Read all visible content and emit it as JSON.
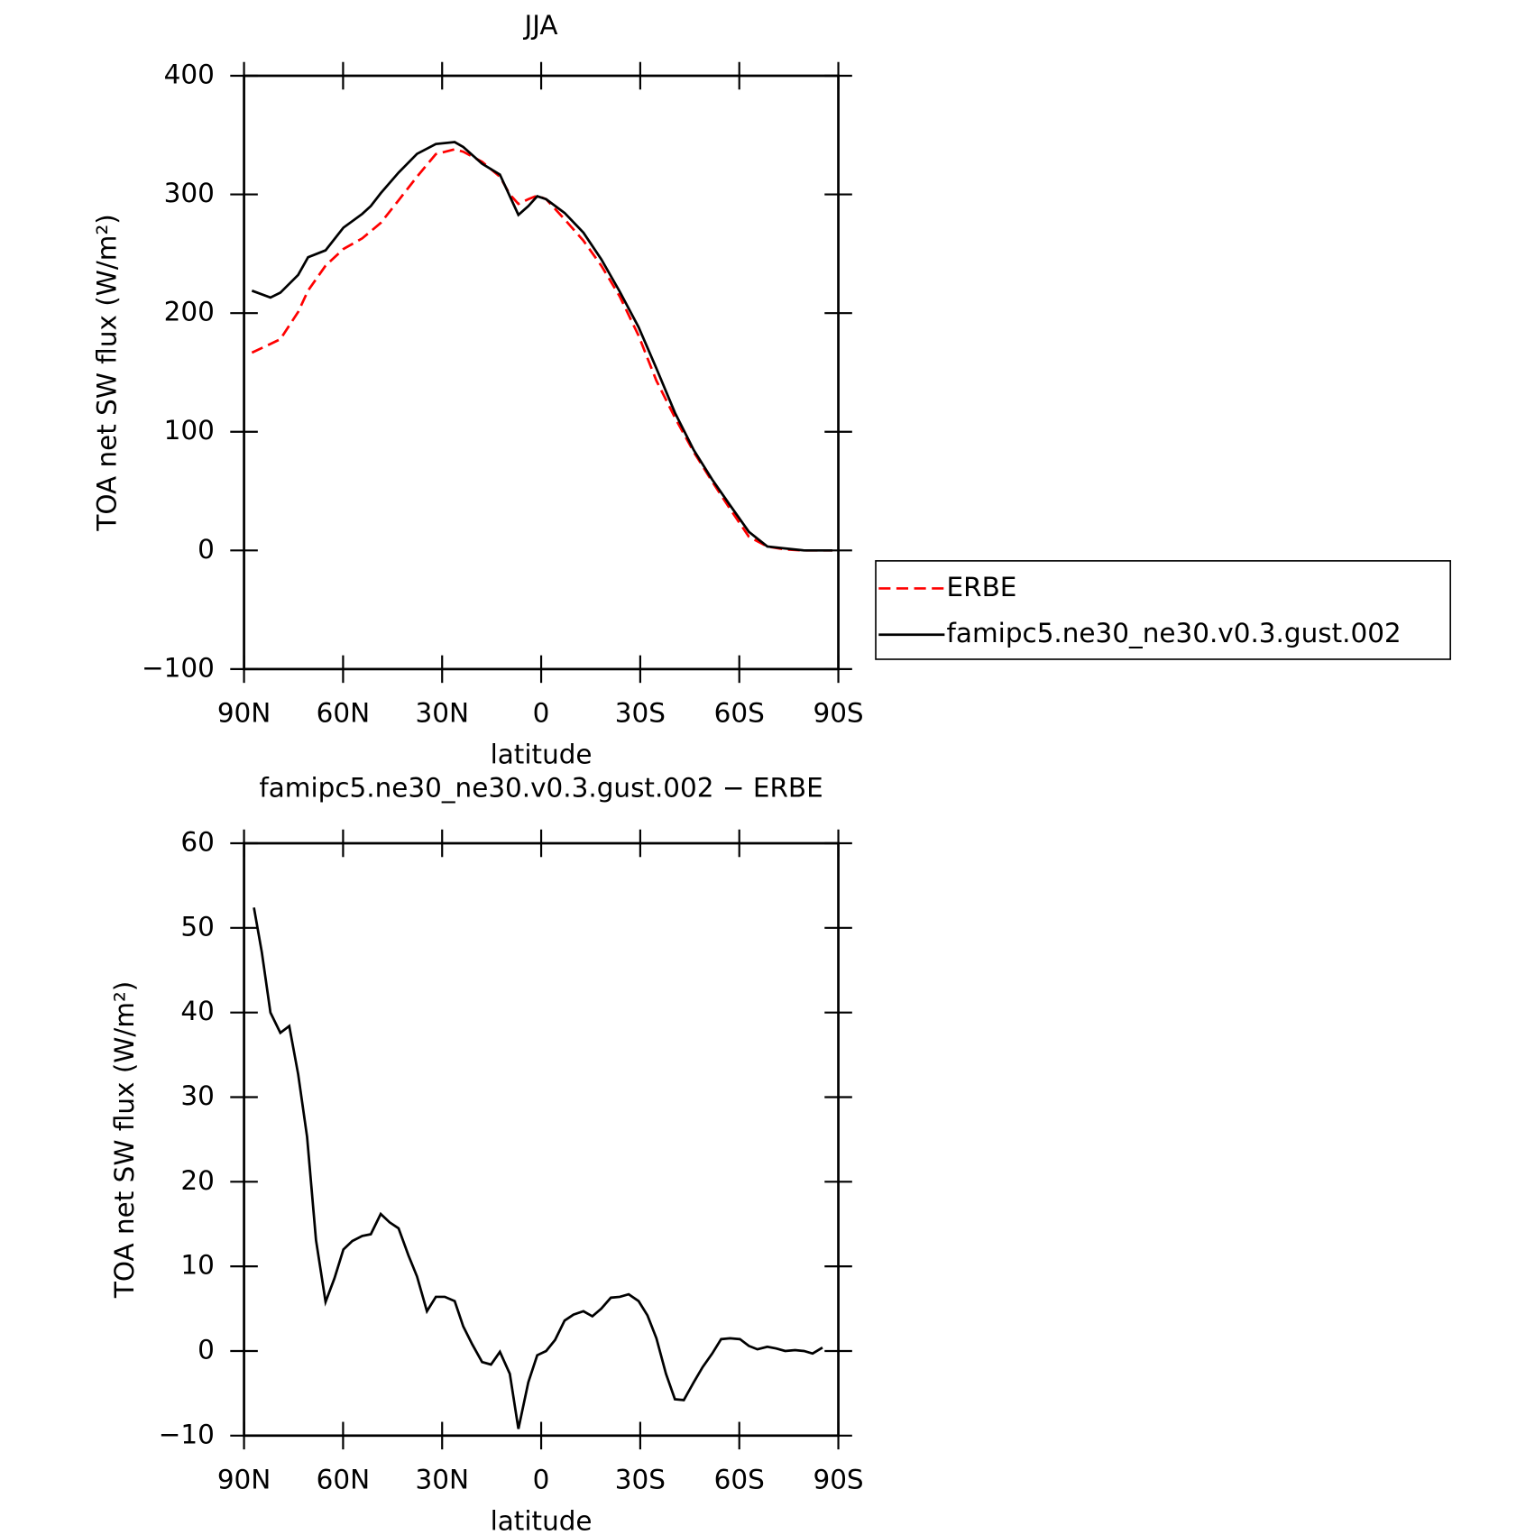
{
  "chart_data": [
    {
      "type": "line",
      "title": "JJA",
      "xlabel": "latitude",
      "ylabel": "TOA net SW flux (W/m²)",
      "xlim": [
        90,
        -90
      ],
      "ylim": [
        -100,
        400
      ],
      "xticks": [
        {
          "value": 90,
          "label": "90N"
        },
        {
          "value": 60,
          "label": "60N"
        },
        {
          "value": 30,
          "label": "30N"
        },
        0,
        {
          "value": -30,
          "label": "30S"
        },
        {
          "value": -60,
          "label": "60S"
        },
        {
          "value": -90,
          "label": "90S"
        }
      ],
      "yticks": [
        {
          "value": -100,
          "label": "−100"
        },
        0,
        100,
        200,
        300,
        400
      ],
      "legend": "right",
      "x": [
        87.6,
        82,
        79,
        73.6,
        70.6,
        65.3,
        59.9,
        54.2,
        51.6,
        48.6,
        43.2,
        37.6,
        31.9,
        26.2,
        23.6,
        17.9,
        12.5,
        9.5,
        6.9,
        3.9,
        1.2,
        -1.5,
        -7.1,
        -12.8,
        -18.2,
        -23.8,
        -29.5,
        -34.9,
        -40.5,
        -46.2,
        -51.8,
        -57.2,
        -62.9,
        -68.5,
        -73.9,
        -79.6,
        -88.2
      ],
      "series": [
        {
          "name": "ERBE",
          "color": "#ff0000",
          "dashed": true,
          "values": [
            166.7,
            174,
            178,
            201,
            219,
            240,
            254,
            263,
            269,
            276,
            295,
            315,
            334,
            338,
            336,
            327.5,
            315,
            300,
            292,
            296,
            299,
            296,
            279,
            261,
            240,
            214,
            181,
            143,
            112,
            83,
            58,
            35,
            11.6,
            3.3,
            0.8,
            0,
            0
          ]
        },
        {
          "name": "famipc5.ne30_ne30.v0.3.gust.002",
          "color": "#000000",
          "values": [
            218.9,
            213.1,
            217.2,
            232.2,
            247.1,
            252.9,
            272,
            283.6,
            290.2,
            301,
            318.4,
            334.2,
            342.5,
            344.1,
            340,
            325.9,
            316.7,
            298.5,
            282.8,
            290.2,
            298.5,
            296,
            284.4,
            267.8,
            245.4,
            218.1,
            188.2,
            153.4,
            116.1,
            84.6,
            59.7,
            38.1,
            15.7,
            3.3,
            1.7,
            0,
            0
          ]
        }
      ]
    },
    {
      "type": "line",
      "title": "famipc5.ne30_ne30.v0.3.gust.002 − ERBE",
      "xlabel": "latitude",
      "ylabel": "TOA net SW flux (W/m²)",
      "xlim": [
        90,
        -90
      ],
      "ylim": [
        -10,
        60
      ],
      "xticks": [
        {
          "value": 90,
          "label": "90N"
        },
        {
          "value": 60,
          "label": "60N"
        },
        {
          "value": 30,
          "label": "30N"
        },
        0,
        {
          "value": -30,
          "label": "30S"
        },
        {
          "value": -60,
          "label": "60S"
        },
        {
          "value": -90,
          "label": "90S"
        }
      ],
      "yticks": [
        {
          "value": -10,
          "label": "−10"
        },
        0,
        10,
        20,
        30,
        40,
        50,
        60
      ],
      "x": [
        87,
        84.6,
        82,
        79,
        76.3,
        73.6,
        70.9,
        68.2,
        65.3,
        62.6,
        59.9,
        57.2,
        54.2,
        51.6,
        48.6,
        45.9,
        43.2,
        40.2,
        37.6,
        34.6,
        31.9,
        29.2,
        26.2,
        23.6,
        20.9,
        17.9,
        15.2,
        12.5,
        9.5,
        6.9,
        3.9,
        1.2,
        -1.5,
        -4.2,
        -7.1,
        -9.8,
        -12.8,
        -15.5,
        -18.2,
        -21.1,
        -23.8,
        -26.5,
        -29.5,
        -32.2,
        -34.9,
        -37.8,
        -40.5,
        -43.2,
        -46.2,
        -48.9,
        -51.8,
        -54.5,
        -57.2,
        -60.2,
        -62.9,
        -65.5,
        -68.5,
        -71.2,
        -73.9,
        -76.9,
        -79.6,
        -82.2,
        -85.2
      ],
      "series": [
        {
          "color": "#000000",
          "values": [
            52.4,
            47.1,
            40,
            37.6,
            38.4,
            32.7,
            25.3,
            13.1,
            5.8,
            8.6,
            12,
            13,
            13.6,
            13.8,
            16.2,
            15.2,
            14.5,
            11.3,
            8.8,
            4.7,
            6.4,
            6.4,
            5.9,
            2.9,
            0.8,
            -1.3,
            -1.6,
            -0.1,
            -2.7,
            -9.2,
            -3.7,
            -0.5,
            0,
            1.3,
            3.6,
            4.3,
            4.7,
            4.1,
            5,
            6.3,
            6.4,
            6.7,
            5.9,
            4.2,
            1.5,
            -2.7,
            -5.7,
            -5.8,
            -3.7,
            -1.9,
            -0.3,
            1.4,
            1.5,
            1.4,
            0.6,
            0.2,
            0.5,
            0.3,
            0,
            0.1,
            0,
            -0.3,
            0.4
          ]
        }
      ]
    }
  ]
}
